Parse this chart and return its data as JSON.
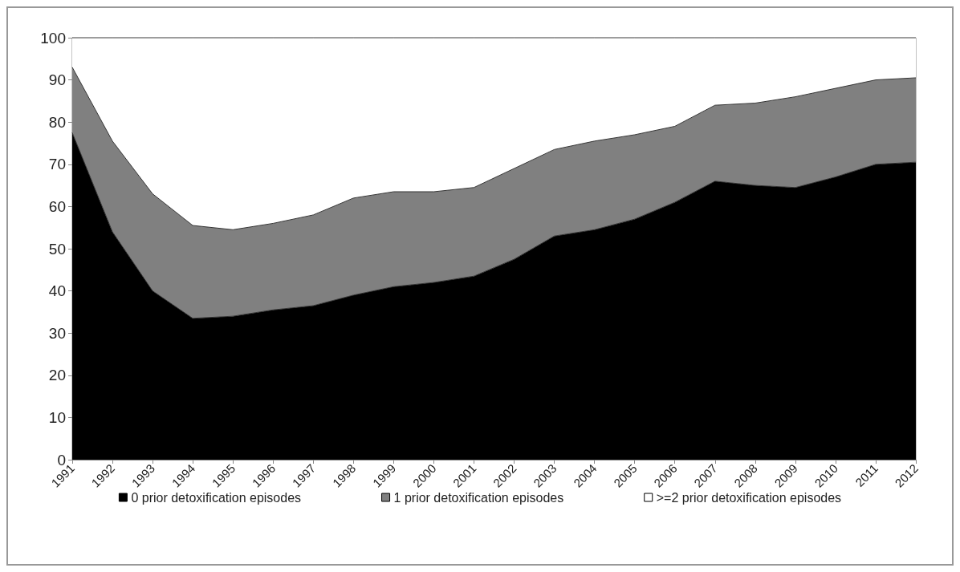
{
  "chart_data": {
    "type": "area",
    "stacked": true,
    "categories": [
      "1991",
      "1992",
      "1993",
      "1994",
      "1995",
      "1996",
      "1997",
      "1998",
      "1999",
      "2000",
      "2001",
      "2002",
      "2003",
      "2004",
      "2005",
      "2006",
      "2007",
      "2008",
      "2009",
      "2010",
      "2011",
      "2012"
    ],
    "series": [
      {
        "name": "0 prior detoxification episodes",
        "color": "#000000",
        "values": [
          77.5,
          54,
          40,
          33.5,
          34,
          35.5,
          36.5,
          39,
          41,
          42,
          43.5,
          47.5,
          53,
          54.5,
          57,
          61,
          66,
          65,
          64.5,
          67,
          70,
          70.5
        ]
      },
      {
        "name": "1 prior detoxification episodes",
        "color": "#808080",
        "values": [
          15.5,
          21.5,
          23,
          22,
          20.5,
          20.5,
          21.5,
          23,
          22.5,
          21.5,
          21,
          21.5,
          20.5,
          21,
          20,
          18,
          18,
          19.5,
          21.5,
          21,
          20,
          20
        ]
      },
      {
        "name": ">=2 prior detoxification episodes",
        "color": "#ffffff",
        "values": [
          7,
          24.5,
          37,
          44.5,
          45.5,
          44,
          42,
          38,
          36.5,
          36.5,
          35.5,
          31,
          26.5,
          24.5,
          23,
          21,
          16,
          15.5,
          14,
          12,
          10,
          9.5
        ]
      }
    ],
    "ylim": [
      0,
      100
    ],
    "yticks": [
      0,
      10,
      20,
      30,
      40,
      50,
      60,
      70,
      80,
      90,
      100
    ],
    "legend": "bottom"
  }
}
